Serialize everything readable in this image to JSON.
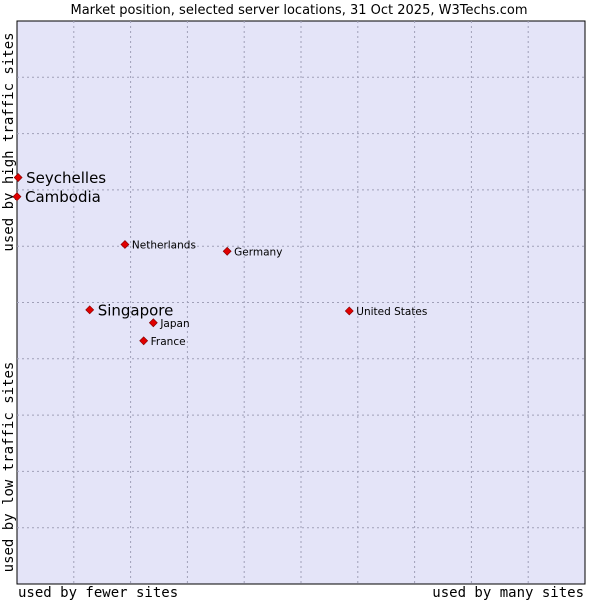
{
  "chart_data": {
    "type": "scatter",
    "title": "Market position, selected server locations, 31 Oct 2025, W3Techs.com",
    "xlabel_low": "used by fewer sites",
    "xlabel_high": "used by many sites",
    "ylabel_low": "used by low traffic sites",
    "ylabel_high": "used by high traffic sites",
    "xlim": [
      0,
      100
    ],
    "ylim": [
      0,
      100
    ],
    "grid": true,
    "marker_color": "#e00000",
    "background_color": "#e4e4f8",
    "points": [
      {
        "name": "Seychelles",
        "x": 0.2,
        "y": 72.2,
        "emphasis": true
      },
      {
        "name": "Cambodia",
        "x": 0.0,
        "y": 68.8,
        "emphasis": true
      },
      {
        "name": "Netherlands",
        "x": 19.0,
        "y": 60.3,
        "emphasis": false
      },
      {
        "name": "Germany",
        "x": 37.0,
        "y": 59.1,
        "emphasis": false
      },
      {
        "name": "Singapore",
        "x": 12.8,
        "y": 48.7,
        "emphasis": true
      },
      {
        "name": "United States",
        "x": 58.5,
        "y": 48.5,
        "emphasis": false
      },
      {
        "name": "Japan",
        "x": 24.0,
        "y": 46.4,
        "emphasis": false
      },
      {
        "name": "France",
        "x": 22.3,
        "y": 43.2,
        "emphasis": false
      }
    ]
  }
}
